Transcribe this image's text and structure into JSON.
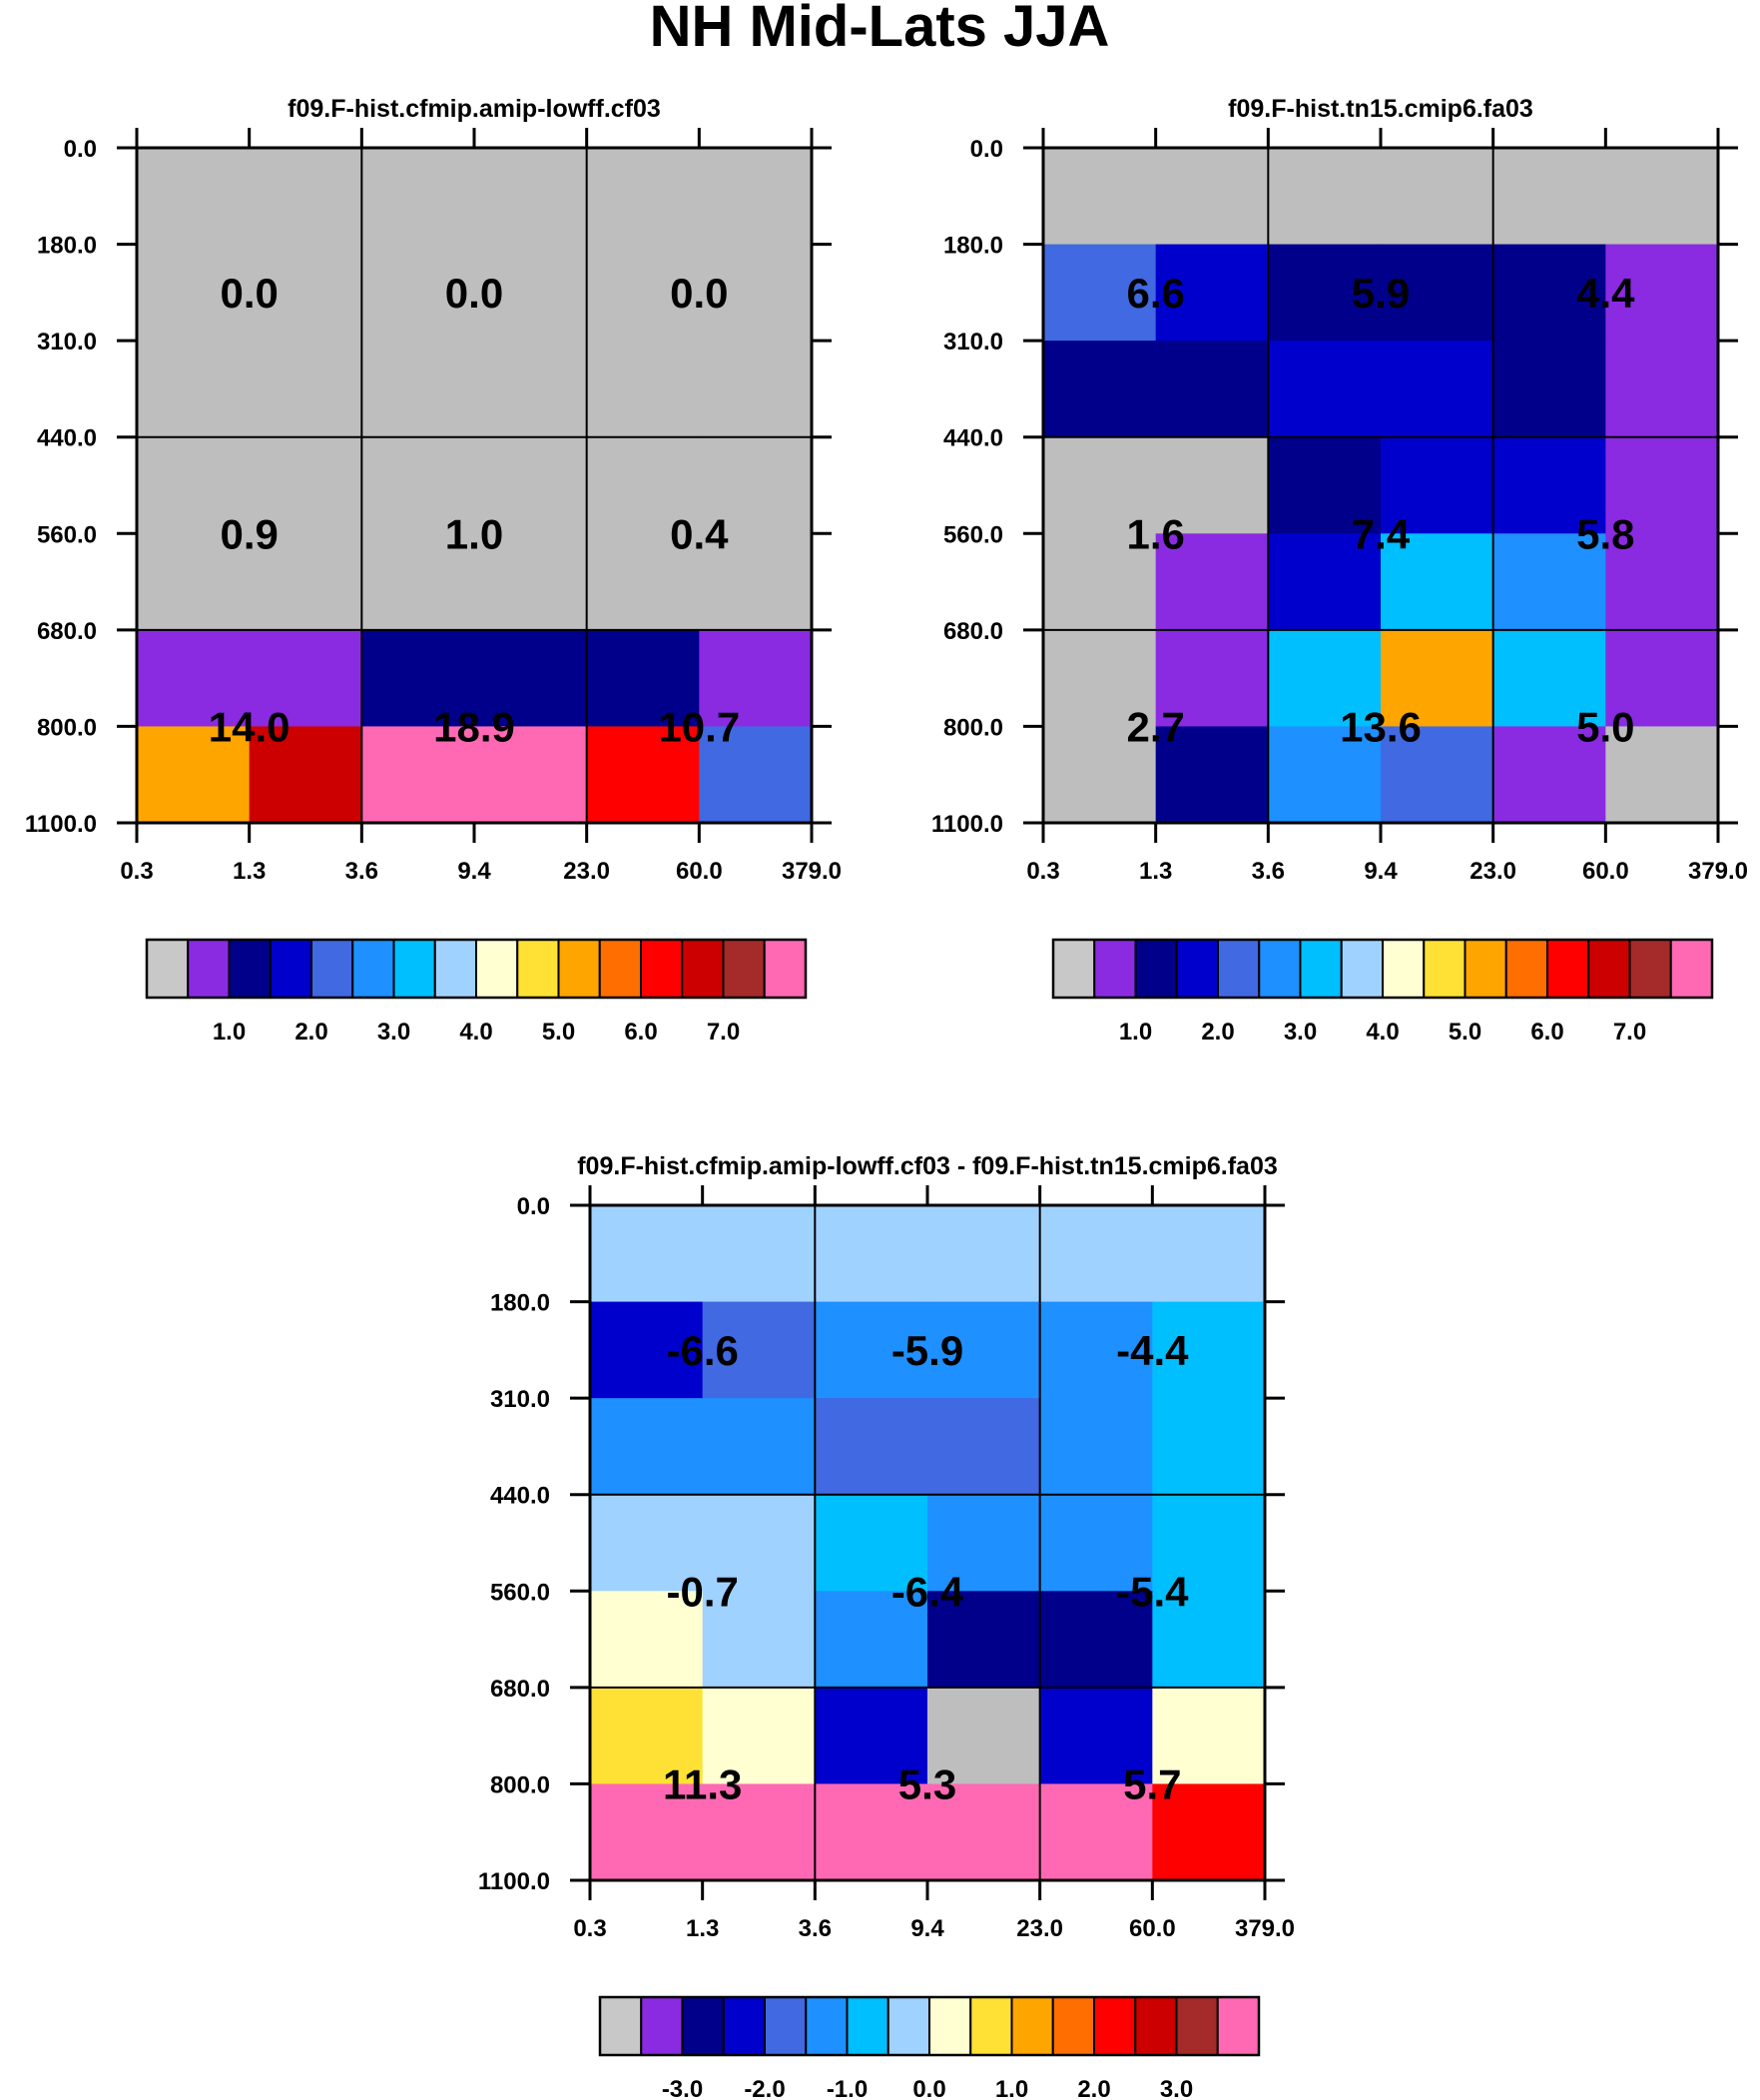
{
  "title": "NH Mid-Lats JJA",
  "chart_data": [
    {
      "type": "heatmap",
      "title": "f09.F-hist.cfmip.amip-lowff.cf03",
      "y_ticks": [
        "0.0",
        "180.0",
        "310.0",
        "440.0",
        "560.0",
        "680.0",
        "800.0",
        "1100.0"
      ],
      "x_ticks": [
        "0.3",
        "1.3",
        "3.6",
        "9.4",
        "23.0",
        "60.0",
        "379.0"
      ],
      "cell_colors": [
        [
          "#bebebe",
          "#bebebe",
          "#bebebe",
          "#bebebe",
          "#bebebe",
          "#bebebe"
        ],
        [
          "#bebebe",
          "#bebebe",
          "#bebebe",
          "#bebebe",
          "#bebebe",
          "#bebebe"
        ],
        [
          "#bebebe",
          "#bebebe",
          "#bebebe",
          "#bebebe",
          "#bebebe",
          "#bebebe"
        ],
        [
          "#bebebe",
          "#bebebe",
          "#bebebe",
          "#bebebe",
          "#bebebe",
          "#bebebe"
        ],
        [
          "#bebebe",
          "#bebebe",
          "#bebebe",
          "#bebebe",
          "#bebebe",
          "#bebebe"
        ],
        [
          "#8a2be2",
          "#8a2be2",
          "#00008b",
          "#00008b",
          "#00008b",
          "#8a2be2"
        ],
        [
          "#ffa500",
          "#cd0000",
          "#ff69b4",
          "#ff69b4",
          "#ff0000",
          "#4169e1"
        ]
      ],
      "block_labels": [
        [
          "0.0",
          "0.0",
          "0.0"
        ],
        [
          "0.9",
          "1.0",
          "0.4"
        ],
        [
          "14.0",
          "18.9",
          "10.7"
        ]
      ],
      "colorbar": {
        "colors": [
          "#c8c8c8",
          "#8a2be2",
          "#00008b",
          "#0000cd",
          "#4169e1",
          "#1e90ff",
          "#00bfff",
          "#a0d2ff",
          "#ffffd1",
          "#ffe135",
          "#ffa500",
          "#ff6e00",
          "#ff0000",
          "#cd0000",
          "#a52a2a",
          "#ff69b4"
        ],
        "labels": [
          "1.0",
          "2.0",
          "3.0",
          "4.0",
          "5.0",
          "6.0",
          "7.0"
        ],
        "label_start_boundary": 2,
        "label_step": 2
      }
    },
    {
      "type": "heatmap",
      "title": "f09.F-hist.tn15.cmip6.fa03",
      "y_ticks": [
        "0.0",
        "180.0",
        "310.0",
        "440.0",
        "560.0",
        "680.0",
        "800.0",
        "1100.0"
      ],
      "x_ticks": [
        "0.3",
        "1.3",
        "3.6",
        "9.4",
        "23.0",
        "60.0",
        "379.0"
      ],
      "cell_colors": [
        [
          "#bebebe",
          "#bebebe",
          "#bebebe",
          "#bebebe",
          "#bebebe",
          "#bebebe"
        ],
        [
          "#4169e1",
          "#0000cd",
          "#00008b",
          "#00008b",
          "#00008b",
          "#8a2be2"
        ],
        [
          "#00008b",
          "#00008b",
          "#0000cd",
          "#0000cd",
          "#00008b",
          "#8a2be2"
        ],
        [
          "#bebebe",
          "#bebebe",
          "#00008b",
          "#0000cd",
          "#0000cd",
          "#8a2be2"
        ],
        [
          "#bebebe",
          "#8a2be2",
          "#0000cd",
          "#00bfff",
          "#1e90ff",
          "#8a2be2"
        ],
        [
          "#bebebe",
          "#8a2be2",
          "#00bfff",
          "#ffa500",
          "#00bfff",
          "#8a2be2"
        ],
        [
          "#bebebe",
          "#00008b",
          "#1e90ff",
          "#4169e1",
          "#8a2be2",
          "#bebebe"
        ]
      ],
      "block_labels": [
        [
          "6.6",
          "5.9",
          "4.4"
        ],
        [
          "1.6",
          "7.4",
          "5.8"
        ],
        [
          "2.7",
          "13.6",
          "5.0"
        ]
      ],
      "colorbar": {
        "colors": [
          "#c8c8c8",
          "#8a2be2",
          "#00008b",
          "#0000cd",
          "#4169e1",
          "#1e90ff",
          "#00bfff",
          "#a0d2ff",
          "#ffffd1",
          "#ffe135",
          "#ffa500",
          "#ff6e00",
          "#ff0000",
          "#cd0000",
          "#a52a2a",
          "#ff69b4"
        ],
        "labels": [
          "1.0",
          "2.0",
          "3.0",
          "4.0",
          "5.0",
          "6.0",
          "7.0"
        ],
        "label_start_boundary": 2,
        "label_step": 2
      }
    },
    {
      "type": "heatmap",
      "title": "f09.F-hist.cfmip.amip-lowff.cf03 - f09.F-hist.tn15.cmip6.fa03",
      "y_ticks": [
        "0.0",
        "180.0",
        "310.0",
        "440.0",
        "560.0",
        "680.0",
        "800.0",
        "1100.0"
      ],
      "x_ticks": [
        "0.3",
        "1.3",
        "3.6",
        "9.4",
        "23.0",
        "60.0",
        "379.0"
      ],
      "cell_colors": [
        [
          "#a0d2ff",
          "#a0d2ff",
          "#a0d2ff",
          "#a0d2ff",
          "#a0d2ff",
          "#a0d2ff"
        ],
        [
          "#0000cd",
          "#4169e1",
          "#1e90ff",
          "#1e90ff",
          "#1e90ff",
          "#00bfff"
        ],
        [
          "#1e90ff",
          "#1e90ff",
          "#4169e1",
          "#4169e1",
          "#1e90ff",
          "#00bfff"
        ],
        [
          "#a0d2ff",
          "#a0d2ff",
          "#00bfff",
          "#1e90ff",
          "#1e90ff",
          "#00bfff"
        ],
        [
          "#ffffd1",
          "#a0d2ff",
          "#1e90ff",
          "#00008b",
          "#00008b",
          "#00bfff"
        ],
        [
          "#ffe135",
          "#ffffd1",
          "#0000cd",
          "#bebebe",
          "#0000cd",
          "#ffffd1"
        ],
        [
          "#ff69b4",
          "#ff69b4",
          "#ff69b4",
          "#ff69b4",
          "#ff69b4",
          "#ff0000"
        ]
      ],
      "block_labels": [
        [
          "-6.6",
          "-5.9",
          "-4.4"
        ],
        [
          "-0.7",
          "-6.4",
          "-5.4"
        ],
        [
          "11.3",
          "5.3",
          "5.7"
        ]
      ],
      "colorbar": {
        "colors": [
          "#c8c8c8",
          "#8a2be2",
          "#00008b",
          "#0000cd",
          "#4169e1",
          "#1e90ff",
          "#00bfff",
          "#a0d2ff",
          "#ffffd1",
          "#ffe135",
          "#ffa500",
          "#ff6e00",
          "#ff0000",
          "#cd0000",
          "#a52a2a",
          "#ff69b4"
        ],
        "labels": [
          "-3.0",
          "-2.0",
          "-1.0",
          "0.0",
          "1.0",
          "2.0",
          "3.0"
        ],
        "label_start_boundary": 2,
        "label_step": 2
      }
    }
  ]
}
